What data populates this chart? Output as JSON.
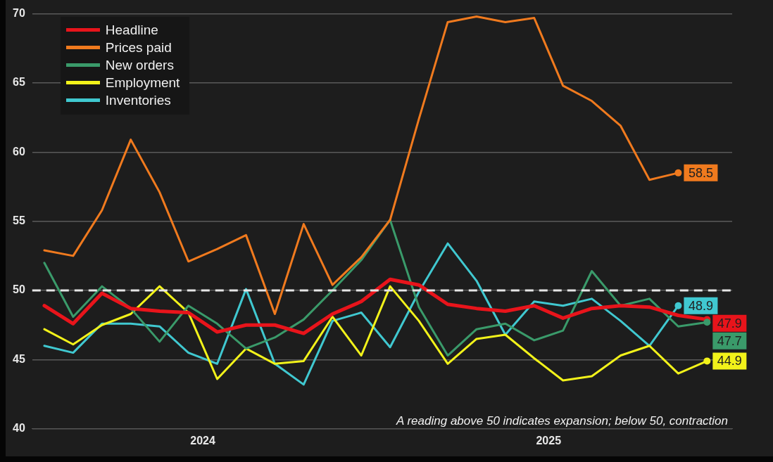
{
  "chart_data": {
    "type": "line",
    "x": [
      "2024-01",
      "2024-02",
      "2024-03",
      "2024-04",
      "2024-05",
      "2024-06",
      "2024-07",
      "2024-08",
      "2024-09",
      "2024-10",
      "2024-11",
      "2024-12",
      "2025-01",
      "2025-02",
      "2025-03",
      "2025-04",
      "2025-05",
      "2025-06",
      "2025-07",
      "2025-08",
      "2025-09",
      "2025-10",
      "2025-11",
      "2025-12"
    ],
    "series": [
      {
        "name": "Headline",
        "color": "#e8141b",
        "values": [
          48.9,
          47.6,
          49.8,
          48.7,
          48.5,
          48.4,
          47.0,
          47.5,
          47.5,
          46.9,
          48.3,
          49.2,
          50.8,
          50.4,
          49.0,
          48.7,
          48.5,
          48.9,
          48.0,
          48.7,
          48.9,
          48.8,
          48.2,
          47.9
        ],
        "value_labels": [
          null,
          null,
          null,
          null,
          null,
          null,
          null,
          null,
          null,
          null,
          null,
          null,
          null,
          null,
          null,
          null,
          null,
          null,
          null,
          null,
          null,
          null,
          null,
          "47.9"
        ]
      },
      {
        "name": "Prices paid",
        "color": "#f07a1e",
        "values": [
          52.9,
          52.5,
          55.8,
          60.9,
          57.1,
          52.1,
          53.0,
          54.0,
          48.3,
          54.8,
          50.4,
          52.4,
          55.1,
          62.4,
          69.4,
          69.8,
          69.4,
          69.7,
          64.8,
          63.7,
          61.9,
          58.0,
          58.5,
          null
        ],
        "value_labels": [
          null,
          null,
          null,
          null,
          null,
          null,
          null,
          null,
          null,
          null,
          null,
          null,
          null,
          null,
          null,
          null,
          null,
          null,
          null,
          null,
          null,
          null,
          "58.5",
          null
        ]
      },
      {
        "name": "New orders",
        "color": "#3a9a6a",
        "values": [
          52.0,
          48.1,
          50.3,
          48.7,
          46.3,
          48.9,
          47.6,
          45.8,
          46.6,
          47.9,
          50.0,
          52.2,
          55.1,
          48.8,
          45.3,
          47.2,
          47.6,
          46.4,
          47.1,
          51.4,
          48.9,
          49.4,
          47.4,
          47.7
        ],
        "value_labels": [
          null,
          null,
          null,
          null,
          null,
          null,
          null,
          null,
          null,
          null,
          null,
          null,
          null,
          null,
          null,
          null,
          null,
          null,
          null,
          null,
          null,
          null,
          null,
          "47.7"
        ]
      },
      {
        "name": "Employment",
        "color": "#f2f21a",
        "values": [
          47.2,
          46.1,
          47.5,
          48.3,
          50.3,
          48.4,
          43.6,
          45.8,
          44.7,
          44.9,
          48.1,
          45.3,
          50.3,
          47.8,
          44.7,
          46.5,
          46.8,
          45.1,
          43.5,
          43.8,
          45.3,
          46.0,
          44.0,
          44.9
        ],
        "value_labels": [
          null,
          null,
          null,
          null,
          null,
          null,
          null,
          null,
          null,
          null,
          null,
          null,
          null,
          null,
          null,
          null,
          null,
          null,
          null,
          null,
          null,
          null,
          null,
          "44.9"
        ]
      },
      {
        "name": "Inventories",
        "color": "#40c8d0",
        "values": [
          46.0,
          45.5,
          47.6,
          47.6,
          47.4,
          45.5,
          44.7,
          50.1,
          44.7,
          43.2,
          47.8,
          48.4,
          45.9,
          49.9,
          53.4,
          50.7,
          46.8,
          49.2,
          48.9,
          49.4,
          47.8,
          46.0,
          48.9,
          null
        ],
        "value_labels": [
          null,
          null,
          null,
          null,
          null,
          null,
          null,
          null,
          null,
          null,
          null,
          null,
          null,
          null,
          null,
          null,
          null,
          null,
          null,
          null,
          null,
          null,
          "48.9",
          null
        ]
      }
    ],
    "xlim": [
      "2023-12-19",
      "2025-12-28"
    ],
    "xticks": [
      {
        "value": "2024-06-16",
        "label": "2024"
      },
      {
        "value": "2025-06-16",
        "label": "2025"
      }
    ],
    "ylim": [
      40,
      70
    ],
    "yticks": [
      40,
      45,
      50,
      55,
      60,
      65,
      70
    ],
    "grid": "y",
    "legend": "top left",
    "marker": "none",
    "line_style": "solid",
    "ref_lines": [
      {
        "axis": "y",
        "value": 50,
        "color": "#e6e6e6",
        "line_style": "dashed"
      }
    ],
    "annotations": [
      "A reading above 50 indicates expansion; below 50, contraction"
    ]
  }
}
